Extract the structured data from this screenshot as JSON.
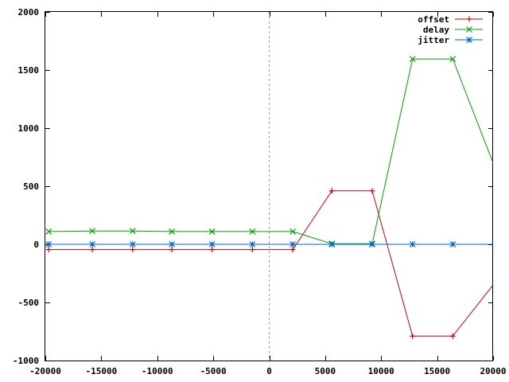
{
  "chart_data": {
    "type": "line",
    "title": "",
    "xlabel": "",
    "ylabel": "",
    "xlim": [
      -20000,
      20000
    ],
    "ylim": [
      -1000,
      2000
    ],
    "xticks": [
      -20000,
      -15000,
      -10000,
      -5000,
      0,
      5000,
      10000,
      15000,
      20000
    ],
    "yticks": [
      -1000,
      -500,
      0,
      500,
      1000,
      1500,
      2000
    ],
    "xtick_labels": [
      "-20000",
      "-15000",
      "-10000",
      "-5000",
      "0",
      "5000",
      "10000",
      "15000",
      "20000"
    ],
    "ytick_labels": [
      "-1000",
      "-500",
      "0",
      "500",
      "1000",
      "1500",
      "2000"
    ],
    "grid": false,
    "zero_line_x": true,
    "legend_position": "top-right",
    "series": [
      {
        "name": "offset",
        "color": "#cc0000",
        "marker": "plus",
        "x": [
          -19700,
          -15800,
          -12200,
          -8700,
          -5100,
          -1500,
          2100,
          5600,
          9200,
          12800,
          16400,
          20000
        ],
        "y": [
          -45,
          -45,
          -45,
          -45,
          -45,
          -45,
          -45,
          460,
          460,
          -790,
          -790,
          -350
        ]
      },
      {
        "name": "delay",
        "color": "#00a000",
        "marker": "cross",
        "x": [
          -19700,
          -15800,
          -12200,
          -8700,
          -5100,
          -1500,
          2100,
          5600,
          9200,
          12800,
          16400,
          20000
        ],
        "y": [
          110,
          115,
          115,
          110,
          110,
          110,
          110,
          5,
          5,
          1595,
          1595,
          700
        ]
      },
      {
        "name": "jitter",
        "color": "#0066cc",
        "marker": "star",
        "x": [
          -19700,
          -15800,
          -12200,
          -8700,
          -5100,
          -1500,
          2100,
          5600,
          9200,
          12800,
          16400,
          20000
        ],
        "y": [
          0,
          0,
          0,
          0,
          0,
          0,
          0,
          0,
          0,
          0,
          0,
          0
        ]
      }
    ]
  }
}
